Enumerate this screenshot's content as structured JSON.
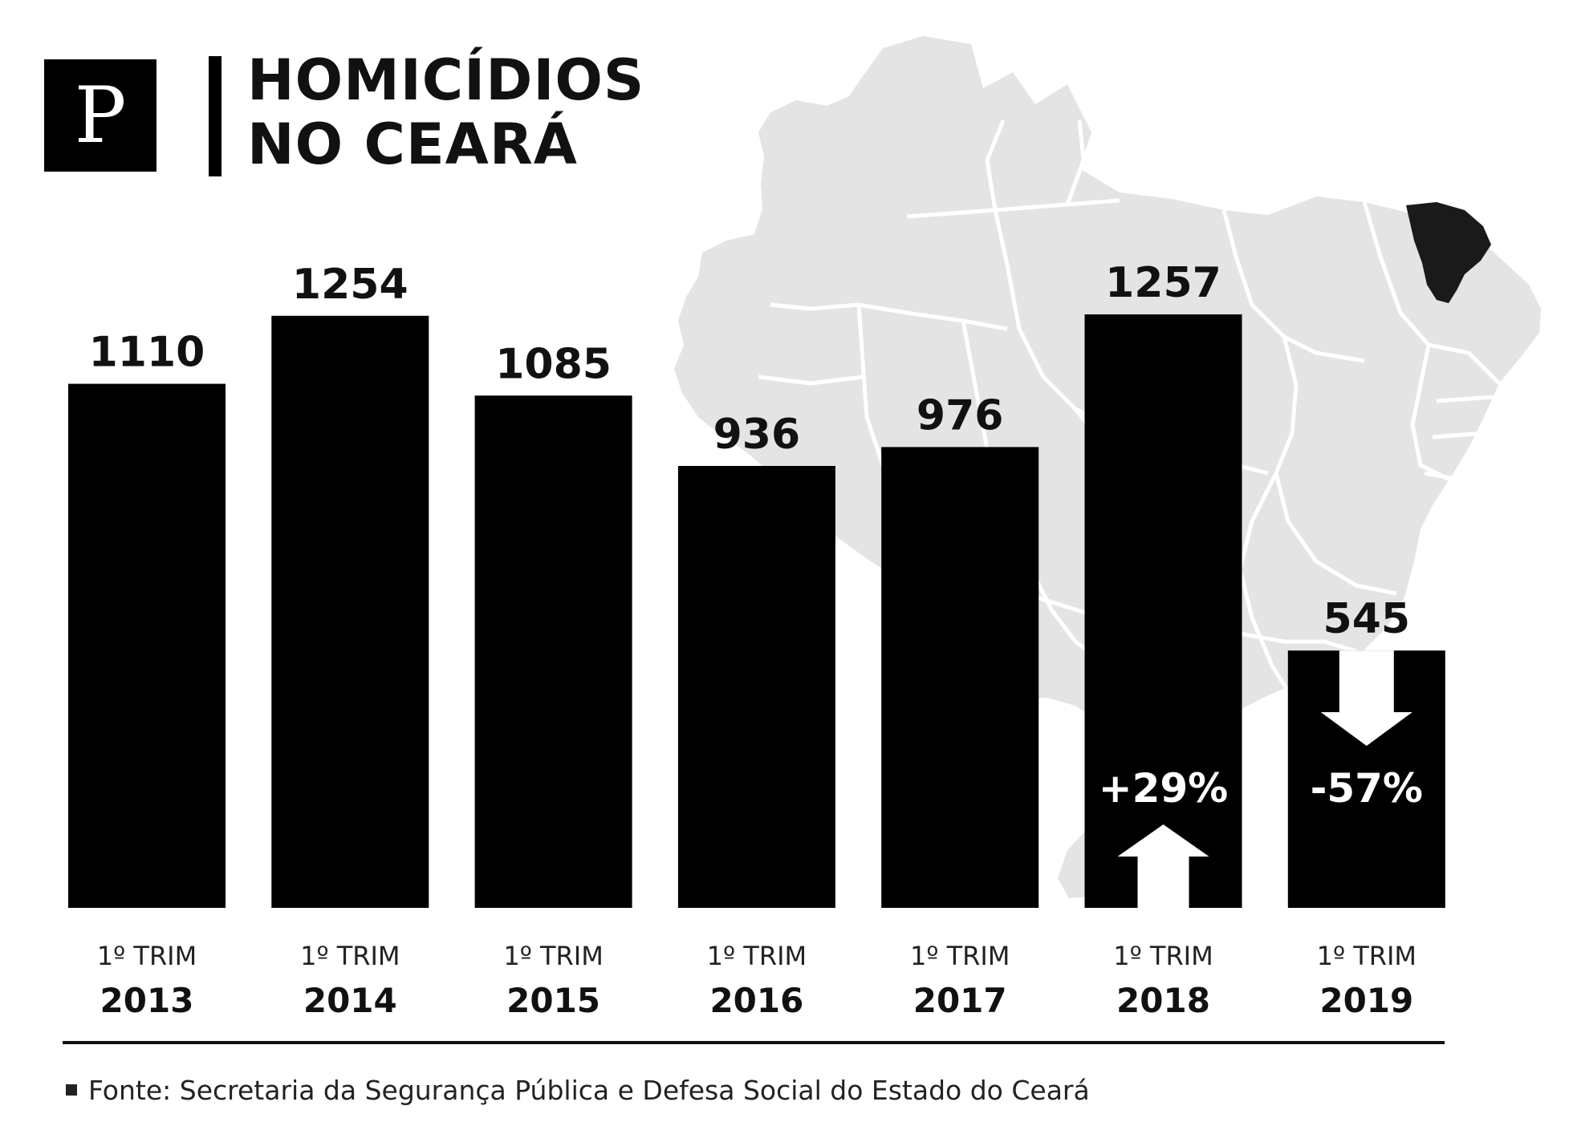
{
  "header": {
    "logo_text": "P",
    "title_line1": "HOMICÍDIOS",
    "title_line2": "NO CEARÁ"
  },
  "chart_data": {
    "type": "bar",
    "title": "HOMICÍDIOS NO CEARÁ",
    "xlabel": "",
    "ylabel": "",
    "period_label": "1º TRIM",
    "categories": [
      "2013",
      "2014",
      "2015",
      "2016",
      "2017",
      "2018",
      "2019"
    ],
    "values": [
      1110,
      1254,
      1085,
      936,
      976,
      1257,
      545
    ],
    "ylim": [
      0,
      1257
    ],
    "grid": false,
    "bar_color": "#000000",
    "annotations": [
      {
        "category": "2018",
        "text": "+29%",
        "arrow": "up"
      },
      {
        "category": "2019",
        "text": "-57%",
        "arrow": "down"
      }
    ]
  },
  "map": {
    "land_color": "#e4e4e4",
    "highlight_color": "#1a1a1a",
    "highlight_region": "Ceará"
  },
  "source": {
    "text": "Fonte: Secretaria da Segurança Pública e Defesa Social do Estado do Ceará"
  }
}
